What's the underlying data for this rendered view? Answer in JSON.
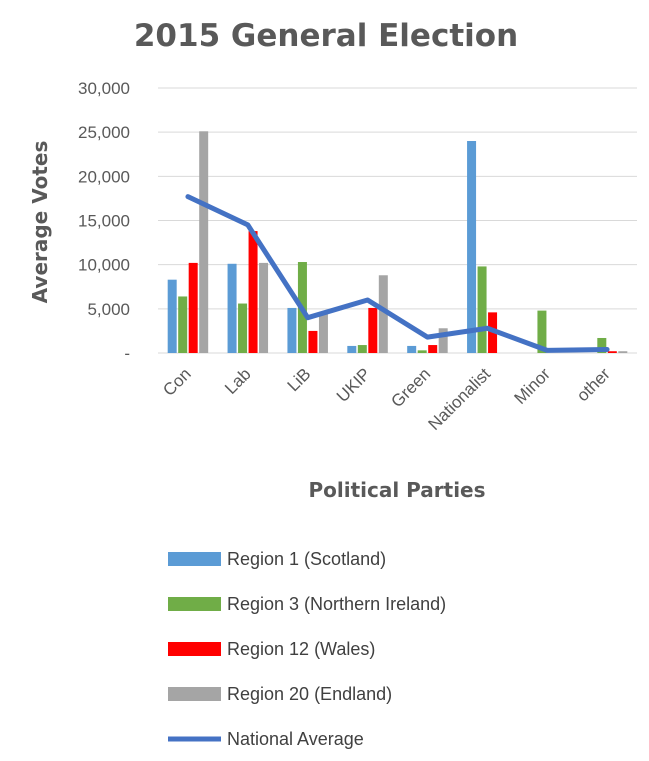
{
  "chart_data": {
    "type": "bar",
    "title": "2015 General Election",
    "xlabel": "Political Parties",
    "ylabel": "Average Votes",
    "categories": [
      "Con",
      "Lab",
      "LiB",
      "UKIP",
      "Green",
      "Nationalist",
      "Minor",
      "other"
    ],
    "ylim": [
      0,
      30000
    ],
    "yticks": [
      0,
      5000,
      10000,
      15000,
      20000,
      25000,
      30000
    ],
    "ytick_labels": [
      "-",
      "5,000",
      "10,000",
      "15,000",
      "20,000",
      "25,000",
      "30,000"
    ],
    "grid": true,
    "legend_position": "bottom",
    "series": [
      {
        "name": "Region 1 (Scotland)",
        "type": "bar",
        "color": "#5B9BD5",
        "values": [
          8300,
          10100,
          5100,
          800,
          800,
          24000,
          0,
          0
        ]
      },
      {
        "name": "Region 3 (Northern Ireland)",
        "type": "bar",
        "color": "#70AD47",
        "values": [
          6400,
          5600,
          10300,
          900,
          300,
          9800,
          4800,
          1700
        ]
      },
      {
        "name": "Region 12 (Wales)",
        "type": "bar",
        "color": "#FF0000",
        "values": [
          10200,
          13800,
          2500,
          5100,
          900,
          4600,
          0,
          200
        ]
      },
      {
        "name": "Region 20 (Endland)",
        "type": "bar",
        "color": "#A5A5A5",
        "values": [
          25100,
          10200,
          4600,
          8800,
          2800,
          0,
          0,
          200
        ]
      },
      {
        "name": "National Average",
        "type": "line",
        "color": "#4472C4",
        "values": [
          17700,
          14500,
          4000,
          6000,
          1800,
          2800,
          300,
          400
        ]
      }
    ]
  }
}
